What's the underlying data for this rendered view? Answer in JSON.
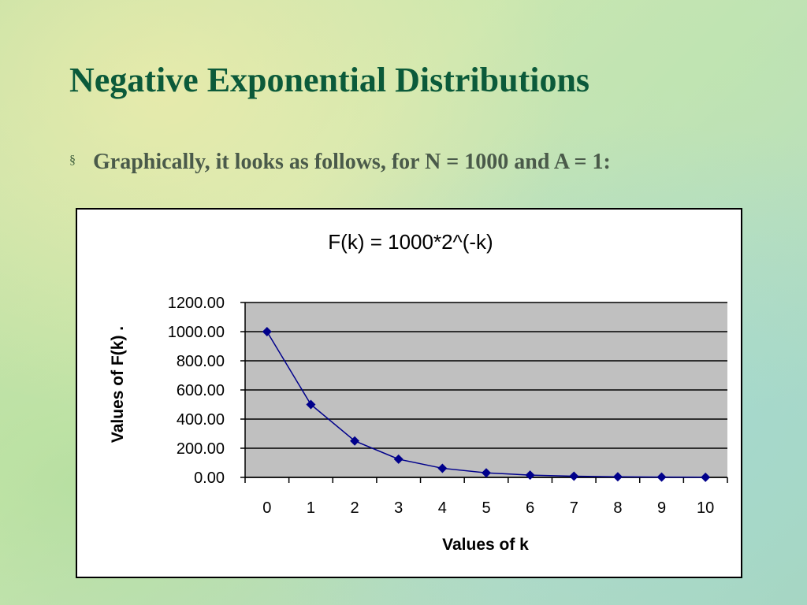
{
  "slide": {
    "title": "Negative Exponential Distributions",
    "bullet_symbol": "§",
    "bullet_text": "Graphically, it looks as follows, for N = 1000 and A = 1:"
  },
  "colors": {
    "title": "#0b5a3a",
    "series": "#00008b",
    "plot_background": "#c0c0c0",
    "gridline": "#000000"
  },
  "chart_data": {
    "type": "line",
    "title": "F(k) = 1000*2^(-k)",
    "xlabel": "Values of k",
    "ylabel": "Values of F(k)   .",
    "categories": [
      "0",
      "1",
      "2",
      "3",
      "4",
      "5",
      "6",
      "7",
      "8",
      "9",
      "10"
    ],
    "series": [
      {
        "values": [
          1000,
          500,
          250,
          125,
          62.5,
          31.25,
          15.63,
          7.81,
          3.91,
          1.95,
          0.98
        ],
        "marker": "diamond"
      }
    ],
    "ylim": [
      0,
      1200
    ],
    "yticks": [
      "0.00",
      "200.00",
      "400.00",
      "600.00",
      "800.00",
      "1000.00",
      "1200.00"
    ],
    "grid": "horizontal",
    "legend": "none"
  }
}
